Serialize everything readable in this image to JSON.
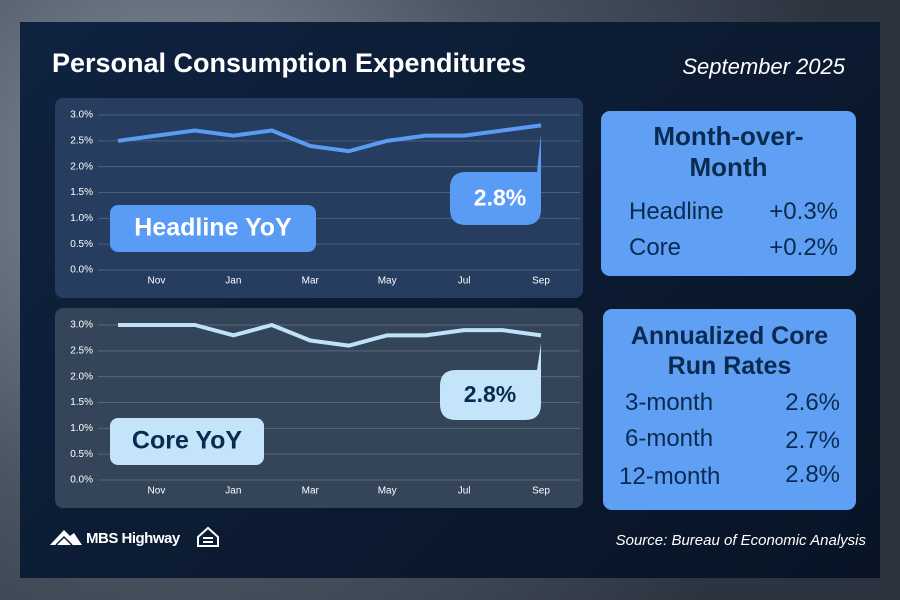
{
  "title": "Personal Consumption Expenditures",
  "date": "September 2025",
  "chart_data": [
    {
      "type": "line",
      "label": "Headline YoY",
      "callout": "2.8%",
      "categories": [
        null,
        "Nov",
        null,
        "Jan",
        null,
        "Mar",
        null,
        "May",
        null,
        "Jul",
        null,
        "Sep"
      ],
      "values": [
        2.5,
        2.6,
        2.7,
        2.6,
        2.7,
        2.4,
        2.3,
        2.5,
        2.6,
        2.6,
        2.7,
        2.8
      ],
      "color": "#5b9cf2",
      "ylim": [
        0,
        3
      ],
      "yticks": [
        {
          "value": 0,
          "label": "0.0%"
        },
        {
          "value": 0.5,
          "label": "0.5%"
        },
        {
          "value": 1,
          "label": "1.0%"
        },
        {
          "value": 1.5,
          "label": "1.5%"
        },
        {
          "value": 2,
          "label": "2.0%"
        },
        {
          "value": 2.5,
          "label": "2.5%"
        },
        {
          "value": 3,
          "label": "3.0%"
        }
      ],
      "grid": true
    },
    {
      "type": "line",
      "label": "Core YoY",
      "callout": "2.8%",
      "categories": [
        null,
        "Nov",
        null,
        "Jan",
        null,
        "Mar",
        null,
        "May",
        null,
        "Jul",
        null,
        "Sep"
      ],
      "values": [
        3.0,
        3.0,
        3.0,
        2.8,
        3.0,
        2.7,
        2.6,
        2.8,
        2.8,
        2.9,
        2.9,
        2.8
      ],
      "color": "#bfe2f8",
      "ylim": [
        0,
        3
      ],
      "yticks": [
        {
          "value": 0,
          "label": "0.0%"
        },
        {
          "value": 0.5,
          "label": "0.5%"
        },
        {
          "value": 1,
          "label": "1.0%"
        },
        {
          "value": 1.5,
          "label": "1.5%"
        },
        {
          "value": 2,
          "label": "2.0%"
        },
        {
          "value": 2.5,
          "label": "2.5%"
        },
        {
          "value": 3,
          "label": "3.0%"
        }
      ],
      "grid": true
    }
  ],
  "mom": {
    "title": "Month-over-Month",
    "rows": [
      [
        "Headline",
        "+0.3%"
      ],
      [
        "Core",
        "+0.2%"
      ]
    ]
  },
  "run_rates": {
    "title": "Annualized Core Run Rates",
    "rows": [
      [
        "3-month",
        "2.6%"
      ],
      [
        "6-month",
        "2.7%"
      ],
      [
        "12-month",
        "2.8%"
      ]
    ]
  },
  "logo": "MBS Highway",
  "source": "Source: Bureau of Economic Analysis"
}
